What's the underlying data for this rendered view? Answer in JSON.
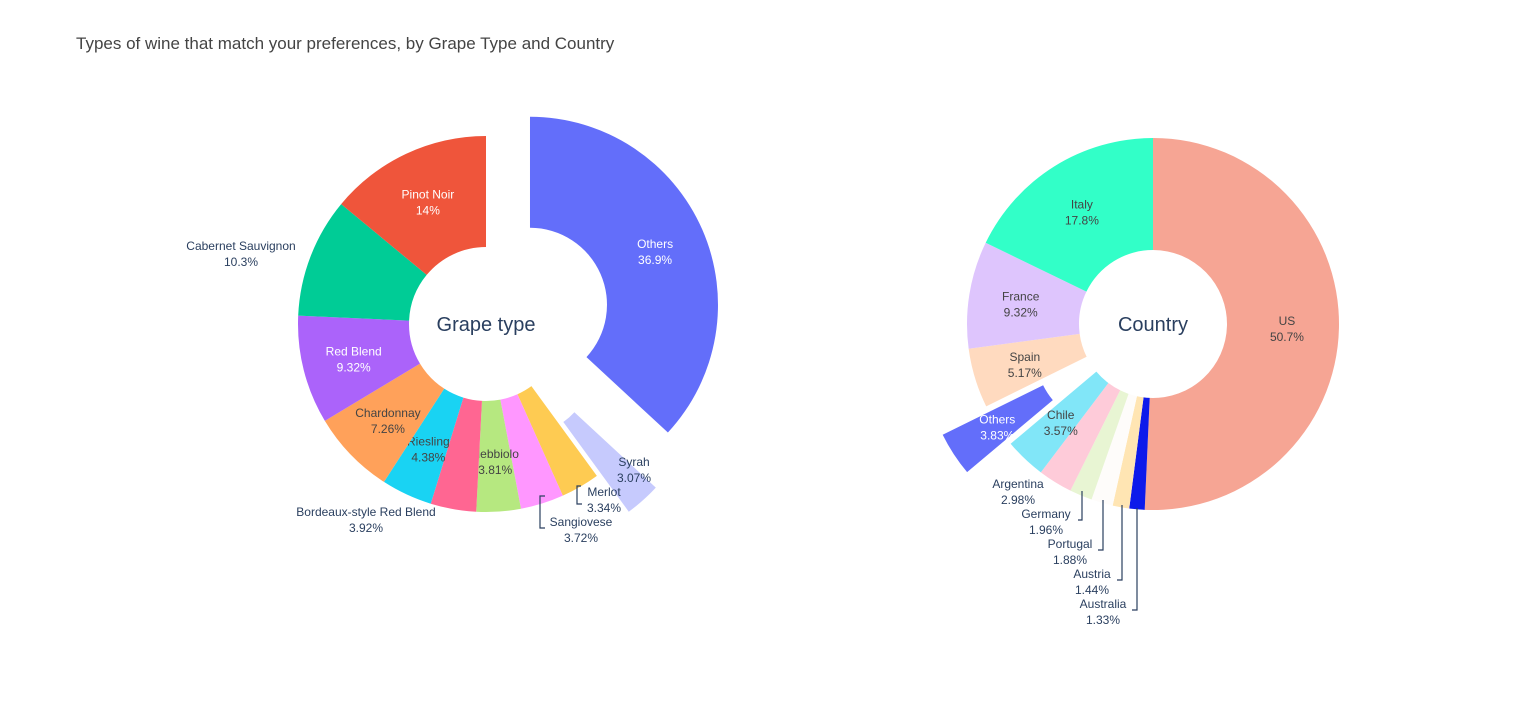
{
  "title": "Types of wine that match your preferences, by Grape Type and Country",
  "chart_data": [
    {
      "type": "pie",
      "hole_label": "Grape type",
      "slices": [
        {
          "label": "Others",
          "value": 36.9,
          "pct_text": "36.9%",
          "color": "#636EFA",
          "pulled": true
        },
        {
          "label": "Syrah",
          "value": 3.07,
          "pct_text": "3.07%",
          "color": "#C6CAFD",
          "pulled": true
        },
        {
          "label": "Merlot",
          "value": 3.34,
          "pct_text": "3.34%",
          "color": "#FECB52"
        },
        {
          "label": "Sangiovese",
          "value": 3.72,
          "pct_text": "3.72%",
          "color": "#FF97FF"
        },
        {
          "label": "Nebbiolo",
          "value": 3.81,
          "pct_text": "3.81%",
          "color": "#B6E880"
        },
        {
          "label": "Bordeaux-style Red Blend",
          "value": 3.92,
          "pct_text": "3.92%",
          "color": "#FF6692"
        },
        {
          "label": "Riesling",
          "value": 4.38,
          "pct_text": "4.38%",
          "color": "#19D3F3"
        },
        {
          "label": "Chardonnay",
          "value": 7.26,
          "pct_text": "7.26%",
          "color": "#FFA15A"
        },
        {
          "label": "Red Blend",
          "value": 9.32,
          "pct_text": "9.32%",
          "color": "#AB63FA"
        },
        {
          "label": "Cabernet Sauvignon",
          "value": 10.3,
          "pct_text": "10.3%",
          "color": "#00CC96"
        },
        {
          "label": "Pinot Noir",
          "value": 14,
          "pct_text": "14%",
          "color": "#EF553B"
        }
      ]
    },
    {
      "type": "pie",
      "hole_label": "Country",
      "slices": [
        {
          "label": "US",
          "value": 50.7,
          "pct_text": "50.7%",
          "color": "#F6A594"
        },
        {
          "label": "Australia",
          "value": 1.33,
          "pct_text": "1.33%",
          "color": "#0D1AEB"
        },
        {
          "label": "Austria",
          "value": 1.44,
          "pct_text": "1.44%",
          "color": "#FFE5B3"
        },
        {
          "label": "Portugal",
          "value": 1.88,
          "pct_text": "1.88%",
          "color": "#FEFCFA"
        },
        {
          "label": "Germany",
          "value": 1.96,
          "pct_text": "1.96%",
          "color": "#E8F5D3"
        },
        {
          "label": "Argentina",
          "value": 2.98,
          "pct_text": "2.98%",
          "color": "#FECBD9"
        },
        {
          "label": "Chile",
          "value": 3.57,
          "pct_text": "3.57%",
          "color": "#81E6F8"
        },
        {
          "label": "Others",
          "value": 3.83,
          "pct_text": "3.83%",
          "color": "#636EFA",
          "pulled": true
        },
        {
          "label": "Spain",
          "value": 5.17,
          "pct_text": "5.17%",
          "color": "#FFDABF"
        },
        {
          "label": "France",
          "value": 9.32,
          "pct_text": "9.32%",
          "color": "#DEC5FD"
        },
        {
          "label": "Italy",
          "value": 17.8,
          "pct_text": "17.8%",
          "color": "#32FFC8"
        }
      ]
    }
  ]
}
